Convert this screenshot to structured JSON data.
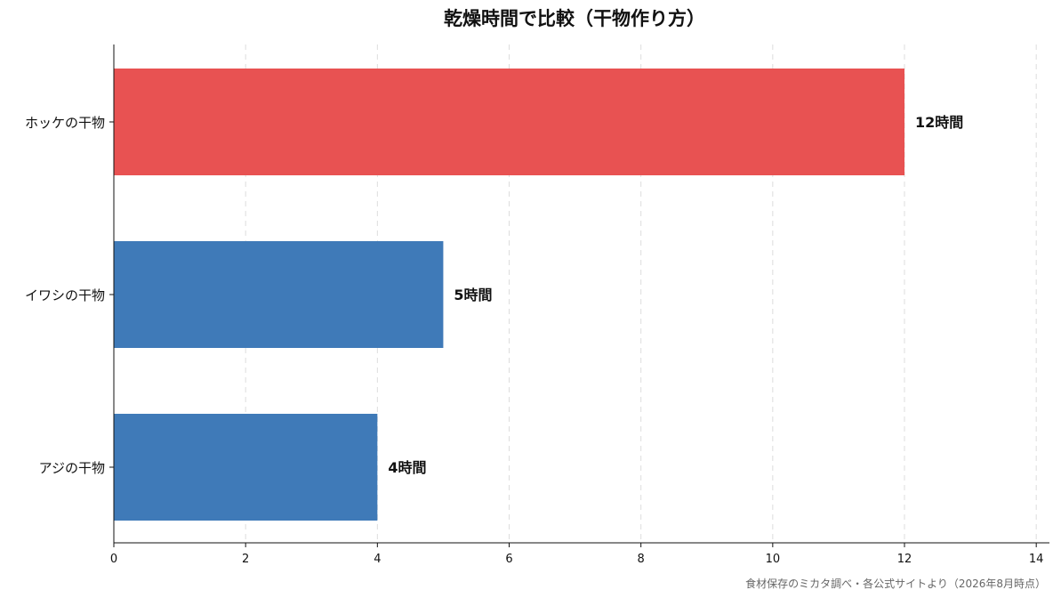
{
  "chart_data": {
    "type": "bar",
    "orientation": "horizontal",
    "title": "乾燥時間で比較（干物作り方）",
    "categories": [
      "ホッケの干物",
      "イワシの干物",
      "アジの干物"
    ],
    "values": [
      12,
      5,
      4
    ],
    "data_labels": [
      "12時間",
      "5時間",
      "4時間"
    ],
    "colors": [
      "#e85252",
      "#3f7ab8",
      "#3f7ab8"
    ],
    "xlim": [
      0,
      14.2
    ],
    "xticks": [
      0,
      2,
      4,
      6,
      8,
      10,
      12,
      14
    ],
    "grid": true,
    "legend": "none"
  },
  "source_note": "食材保存のミカタ調べ・各公式サイトより（2026年8月時点）"
}
